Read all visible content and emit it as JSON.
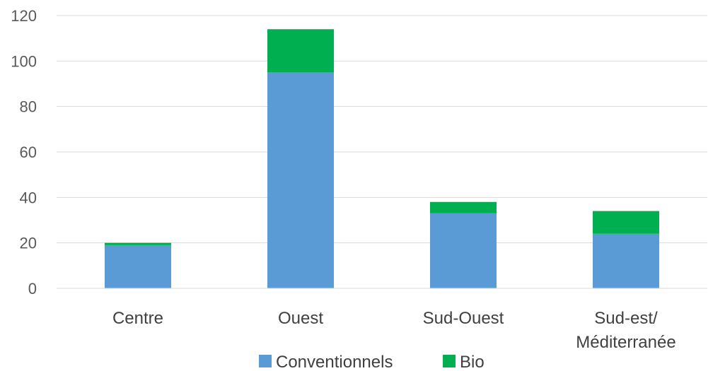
{
  "chart_data": {
    "type": "bar",
    "stacked": true,
    "categories": [
      "Centre",
      "Ouest",
      "Sud-Ouest",
      "Sud-est/ Méditerranée"
    ],
    "category_lines": [
      [
        "Centre"
      ],
      [
        "Ouest"
      ],
      [
        "Sud-Ouest"
      ],
      [
        "Sud-est/",
        "Méditerranée"
      ]
    ],
    "series": [
      {
        "name": "Conventionnels",
        "values": [
          19,
          95,
          33,
          24
        ],
        "color": "#5b9bd5"
      },
      {
        "name": "Bio",
        "values": [
          1,
          19,
          5,
          10
        ],
        "color": "#00b050"
      }
    ],
    "title": "",
    "xlabel": "",
    "ylabel": "",
    "ylim": [
      0,
      120
    ],
    "yticks": [
      0,
      20,
      40,
      60,
      80,
      100,
      120
    ],
    "grid": true,
    "gridColor": "#d9d9d9",
    "legend_position": "bottom"
  }
}
